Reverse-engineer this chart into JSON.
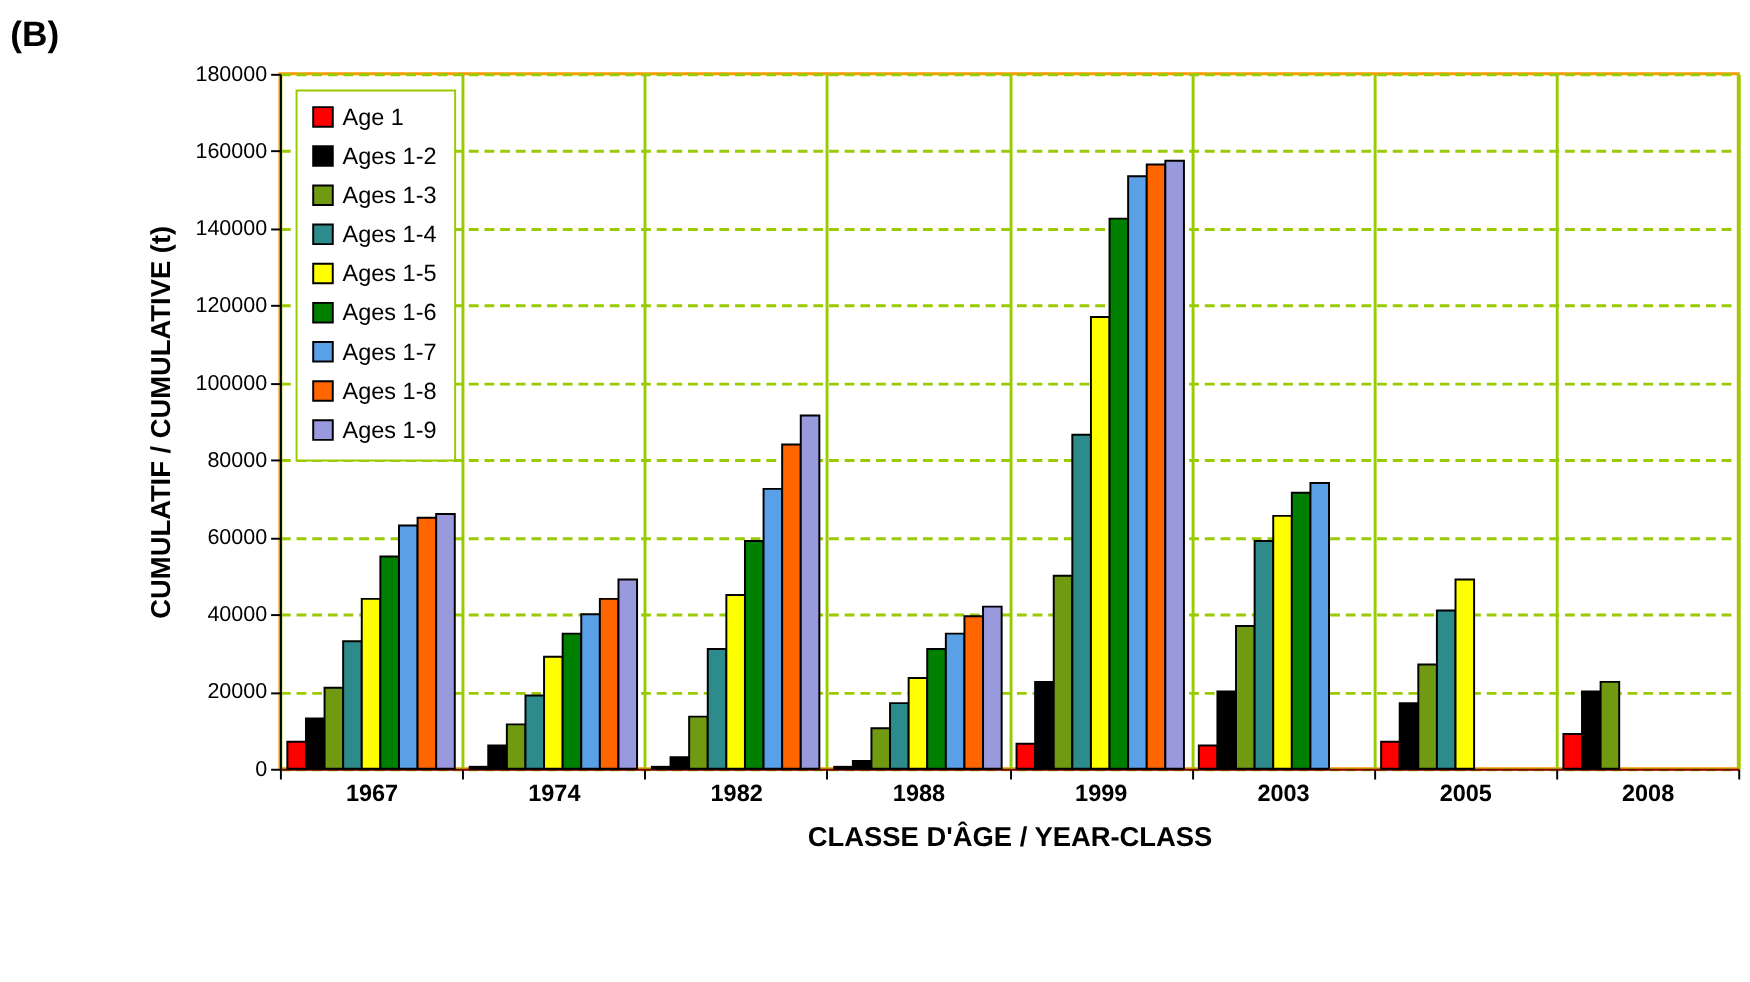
{
  "chart_data": {
    "type": "bar",
    "title": "(B)",
    "xlabel": "CLASSE D'ÂGE  /  YEAR-CLASS",
    "ylabel": "CUMULATIF  /  CUMULATIVE  (t)",
    "categories": [
      "1967",
      "1974",
      "1982",
      "1988",
      "1999",
      "2003",
      "2005",
      "2008"
    ],
    "series": [
      {
        "name": "Age 1",
        "color": "#ff0000",
        "values": [
          7000,
          500,
          500,
          500,
          6500,
          6000,
          7000,
          9000
        ]
      },
      {
        "name": "Ages 1-2",
        "color": "#000000",
        "values": [
          13000,
          6000,
          3000,
          2000,
          22500,
          20000,
          17000,
          20000
        ]
      },
      {
        "name": "Ages 1-3",
        "color": "#6f9a12",
        "values": [
          21000,
          11500,
          13500,
          10500,
          50000,
          37000,
          27000,
          22500
        ]
      },
      {
        "name": "Ages 1-4",
        "color": "#2e8b8b",
        "values": [
          33000,
          19000,
          31000,
          17000,
          86500,
          59000,
          41000,
          null
        ]
      },
      {
        "name": "Ages 1-5",
        "color": "#ffff00",
        "values": [
          44000,
          29000,
          45000,
          23500,
          117000,
          65500,
          49000,
          null
        ]
      },
      {
        "name": "Ages 1-6",
        "color": "#008000",
        "values": [
          55000,
          35000,
          59000,
          31000,
          142500,
          71500,
          null,
          null
        ]
      },
      {
        "name": "Ages 1-7",
        "color": "#5aa0e6",
        "values": [
          63000,
          40000,
          72500,
          35000,
          153500,
          74000,
          null,
          null
        ]
      },
      {
        "name": "Ages 1-8",
        "color": "#ff6600",
        "values": [
          65000,
          44000,
          84000,
          39500,
          156500,
          null,
          null,
          null
        ]
      },
      {
        "name": "Ages 1-9",
        "color": "#9999dd",
        "values": [
          66000,
          49000,
          91500,
          42000,
          157500,
          null,
          null,
          null
        ]
      }
    ],
    "ylim": [
      0,
      180000
    ],
    "yticks": [
      0,
      20000,
      40000,
      60000,
      80000,
      100000,
      120000,
      140000,
      160000,
      180000
    ],
    "grid": true,
    "legend": "top left"
  }
}
